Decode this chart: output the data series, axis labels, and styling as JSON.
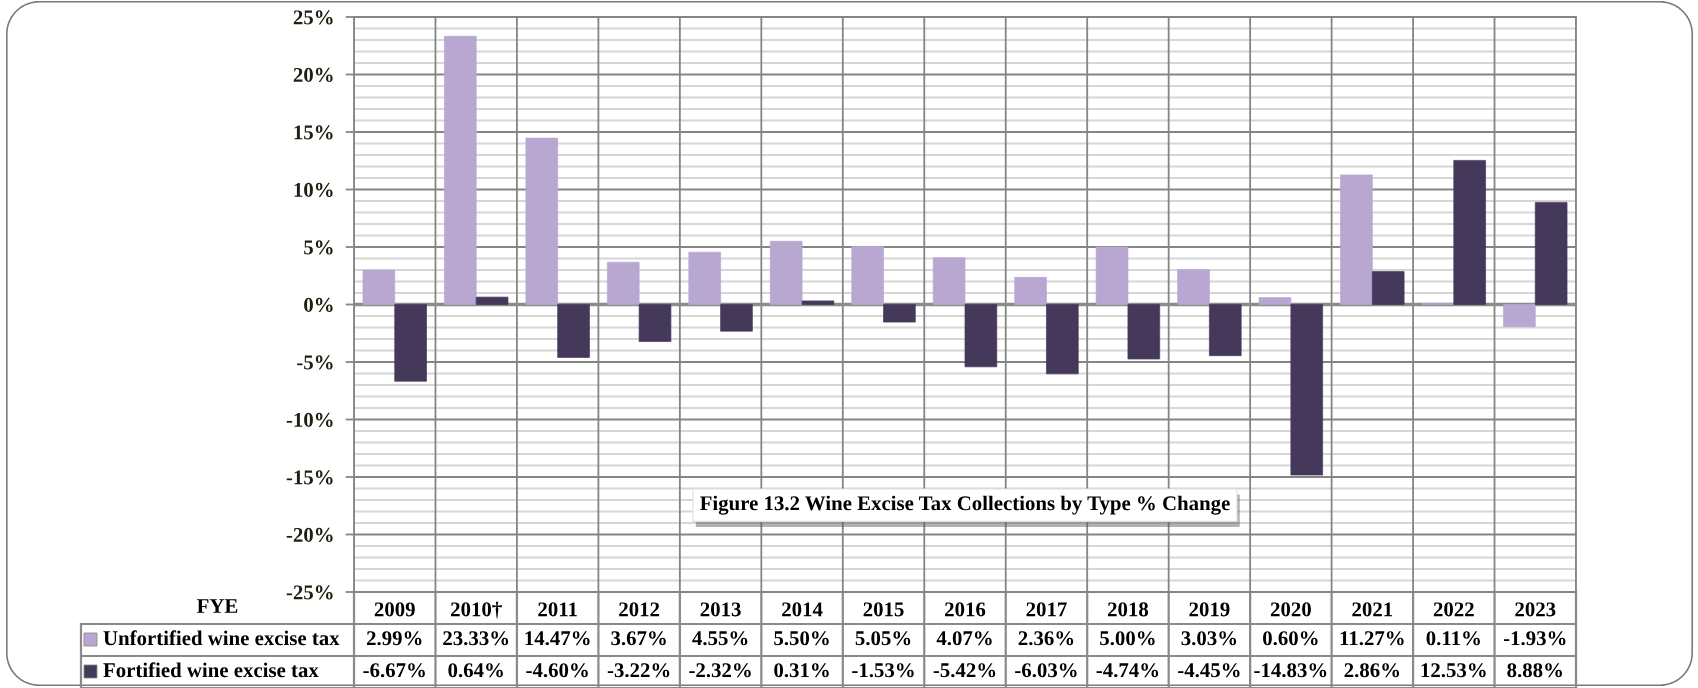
{
  "chart_data": {
    "type": "bar",
    "title": "Figure 13.2 Wine Excise Tax Collections by Type % Change",
    "xlabel": "FYE",
    "categories": [
      "2009",
      "2010†",
      "2011",
      "2012",
      "2013",
      "2014",
      "2015",
      "2016",
      "2017",
      "2018",
      "2019",
      "2020",
      "2021",
      "2022",
      "2023"
    ],
    "series": [
      {
        "name": "Unfortified wine excise tax",
        "color": "#b7a7d1",
        "values": [
          2.99,
          23.33,
          14.47,
          3.67,
          4.55,
          5.5,
          5.05,
          4.07,
          2.36,
          5.0,
          3.03,
          0.6,
          11.27,
          0.11,
          -1.93
        ],
        "value_labels": [
          "2.99%",
          "23.33%",
          "14.47%",
          "3.67%",
          "4.55%",
          "5.50%",
          "5.05%",
          "4.07%",
          "2.36%",
          "5.00%",
          "3.03%",
          "0.60%",
          "11.27%",
          "0.11%",
          "-1.93%"
        ]
      },
      {
        "name": "Fortified wine excise tax",
        "color": "#45395b",
        "values": [
          -6.67,
          0.64,
          -4.6,
          -3.22,
          -2.32,
          0.31,
          -1.53,
          -5.42,
          -6.03,
          -4.74,
          -4.45,
          -14.83,
          2.86,
          12.53,
          8.88
        ],
        "value_labels": [
          "-6.67%",
          "0.64%",
          "-4.60%",
          "-3.22%",
          "-2.32%",
          "0.31%",
          "-1.53%",
          "-5.42%",
          "-6.03%",
          "-4.74%",
          "-4.45%",
          "-14.83%",
          "2.86%",
          "12.53%",
          "8.88%"
        ]
      }
    ],
    "ylim": [
      -25,
      25
    ],
    "yticks": [
      {
        "value": -25,
        "label": "-25%"
      },
      {
        "value": -20,
        "label": "-20%"
      },
      {
        "value": -15,
        "label": "-15%"
      },
      {
        "value": -10,
        "label": "-10%"
      },
      {
        "value": -5,
        "label": "-5%"
      },
      {
        "value": 0,
        "label": "0%"
      },
      {
        "value": 5,
        "label": "5%"
      },
      {
        "value": 10,
        "label": "10%"
      },
      {
        "value": 15,
        "label": "15%"
      },
      {
        "value": 20,
        "label": "20%"
      },
      {
        "value": 25,
        "label": "25%"
      }
    ],
    "grid": true,
    "legend": "bottom"
  }
}
